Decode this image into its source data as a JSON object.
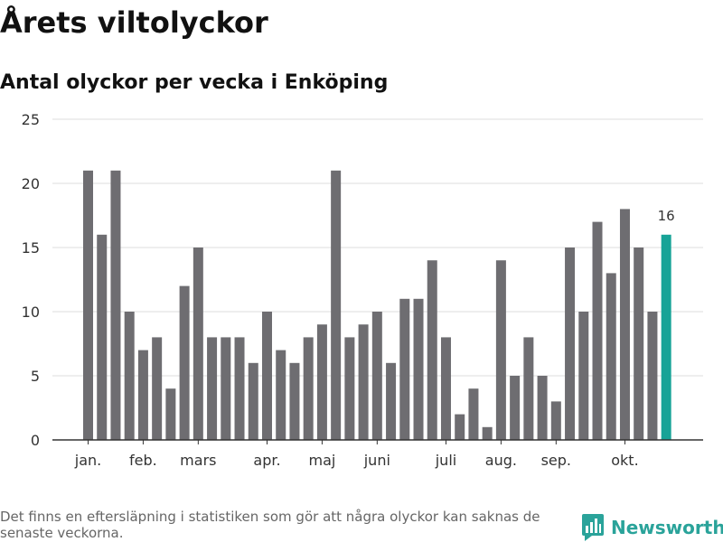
{
  "title": "Årets viltolyckor",
  "subtitle": "Antal olyckor per vecka i Enköping",
  "footnote": "Det finns en eftersläpning i statistiken som gör att några olyckor kan saknas de senaste veckorna.",
  "brand": {
    "name": "Newsworthy",
    "icon": "newsworthy-logo-icon",
    "color": "#2aa39a"
  },
  "chart_data": {
    "type": "bar",
    "values": [
      21,
      16,
      21,
      10,
      7,
      8,
      4,
      12,
      15,
      8,
      8,
      8,
      6,
      10,
      7,
      6,
      8,
      9,
      21,
      8,
      9,
      10,
      6,
      11,
      11,
      14,
      8,
      2,
      4,
      1,
      14,
      5,
      8,
      5,
      3,
      15,
      10,
      17,
      13,
      18,
      15,
      10,
      16
    ],
    "month_labels": [
      {
        "label": "jan.",
        "index": 0
      },
      {
        "label": "feb.",
        "index": 4
      },
      {
        "label": "mars",
        "index": 8
      },
      {
        "label": "apr.",
        "index": 13
      },
      {
        "label": "maj",
        "index": 17
      },
      {
        "label": "juni",
        "index": 21
      },
      {
        "label": "juli",
        "index": 26
      },
      {
        "label": "aug.",
        "index": 30
      },
      {
        "label": "sep.",
        "index": 34
      },
      {
        "label": "okt.",
        "index": 39
      }
    ],
    "yticks": [
      0,
      5,
      10,
      15,
      20,
      25
    ],
    "ylim": [
      0,
      25
    ],
    "highlight_index": 42,
    "highlight_label": "16",
    "grid": true,
    "colors": {
      "bar": "#6e6d71",
      "highlight": "#17a397",
      "grid": "#dddddd",
      "axis": "#333333"
    }
  }
}
